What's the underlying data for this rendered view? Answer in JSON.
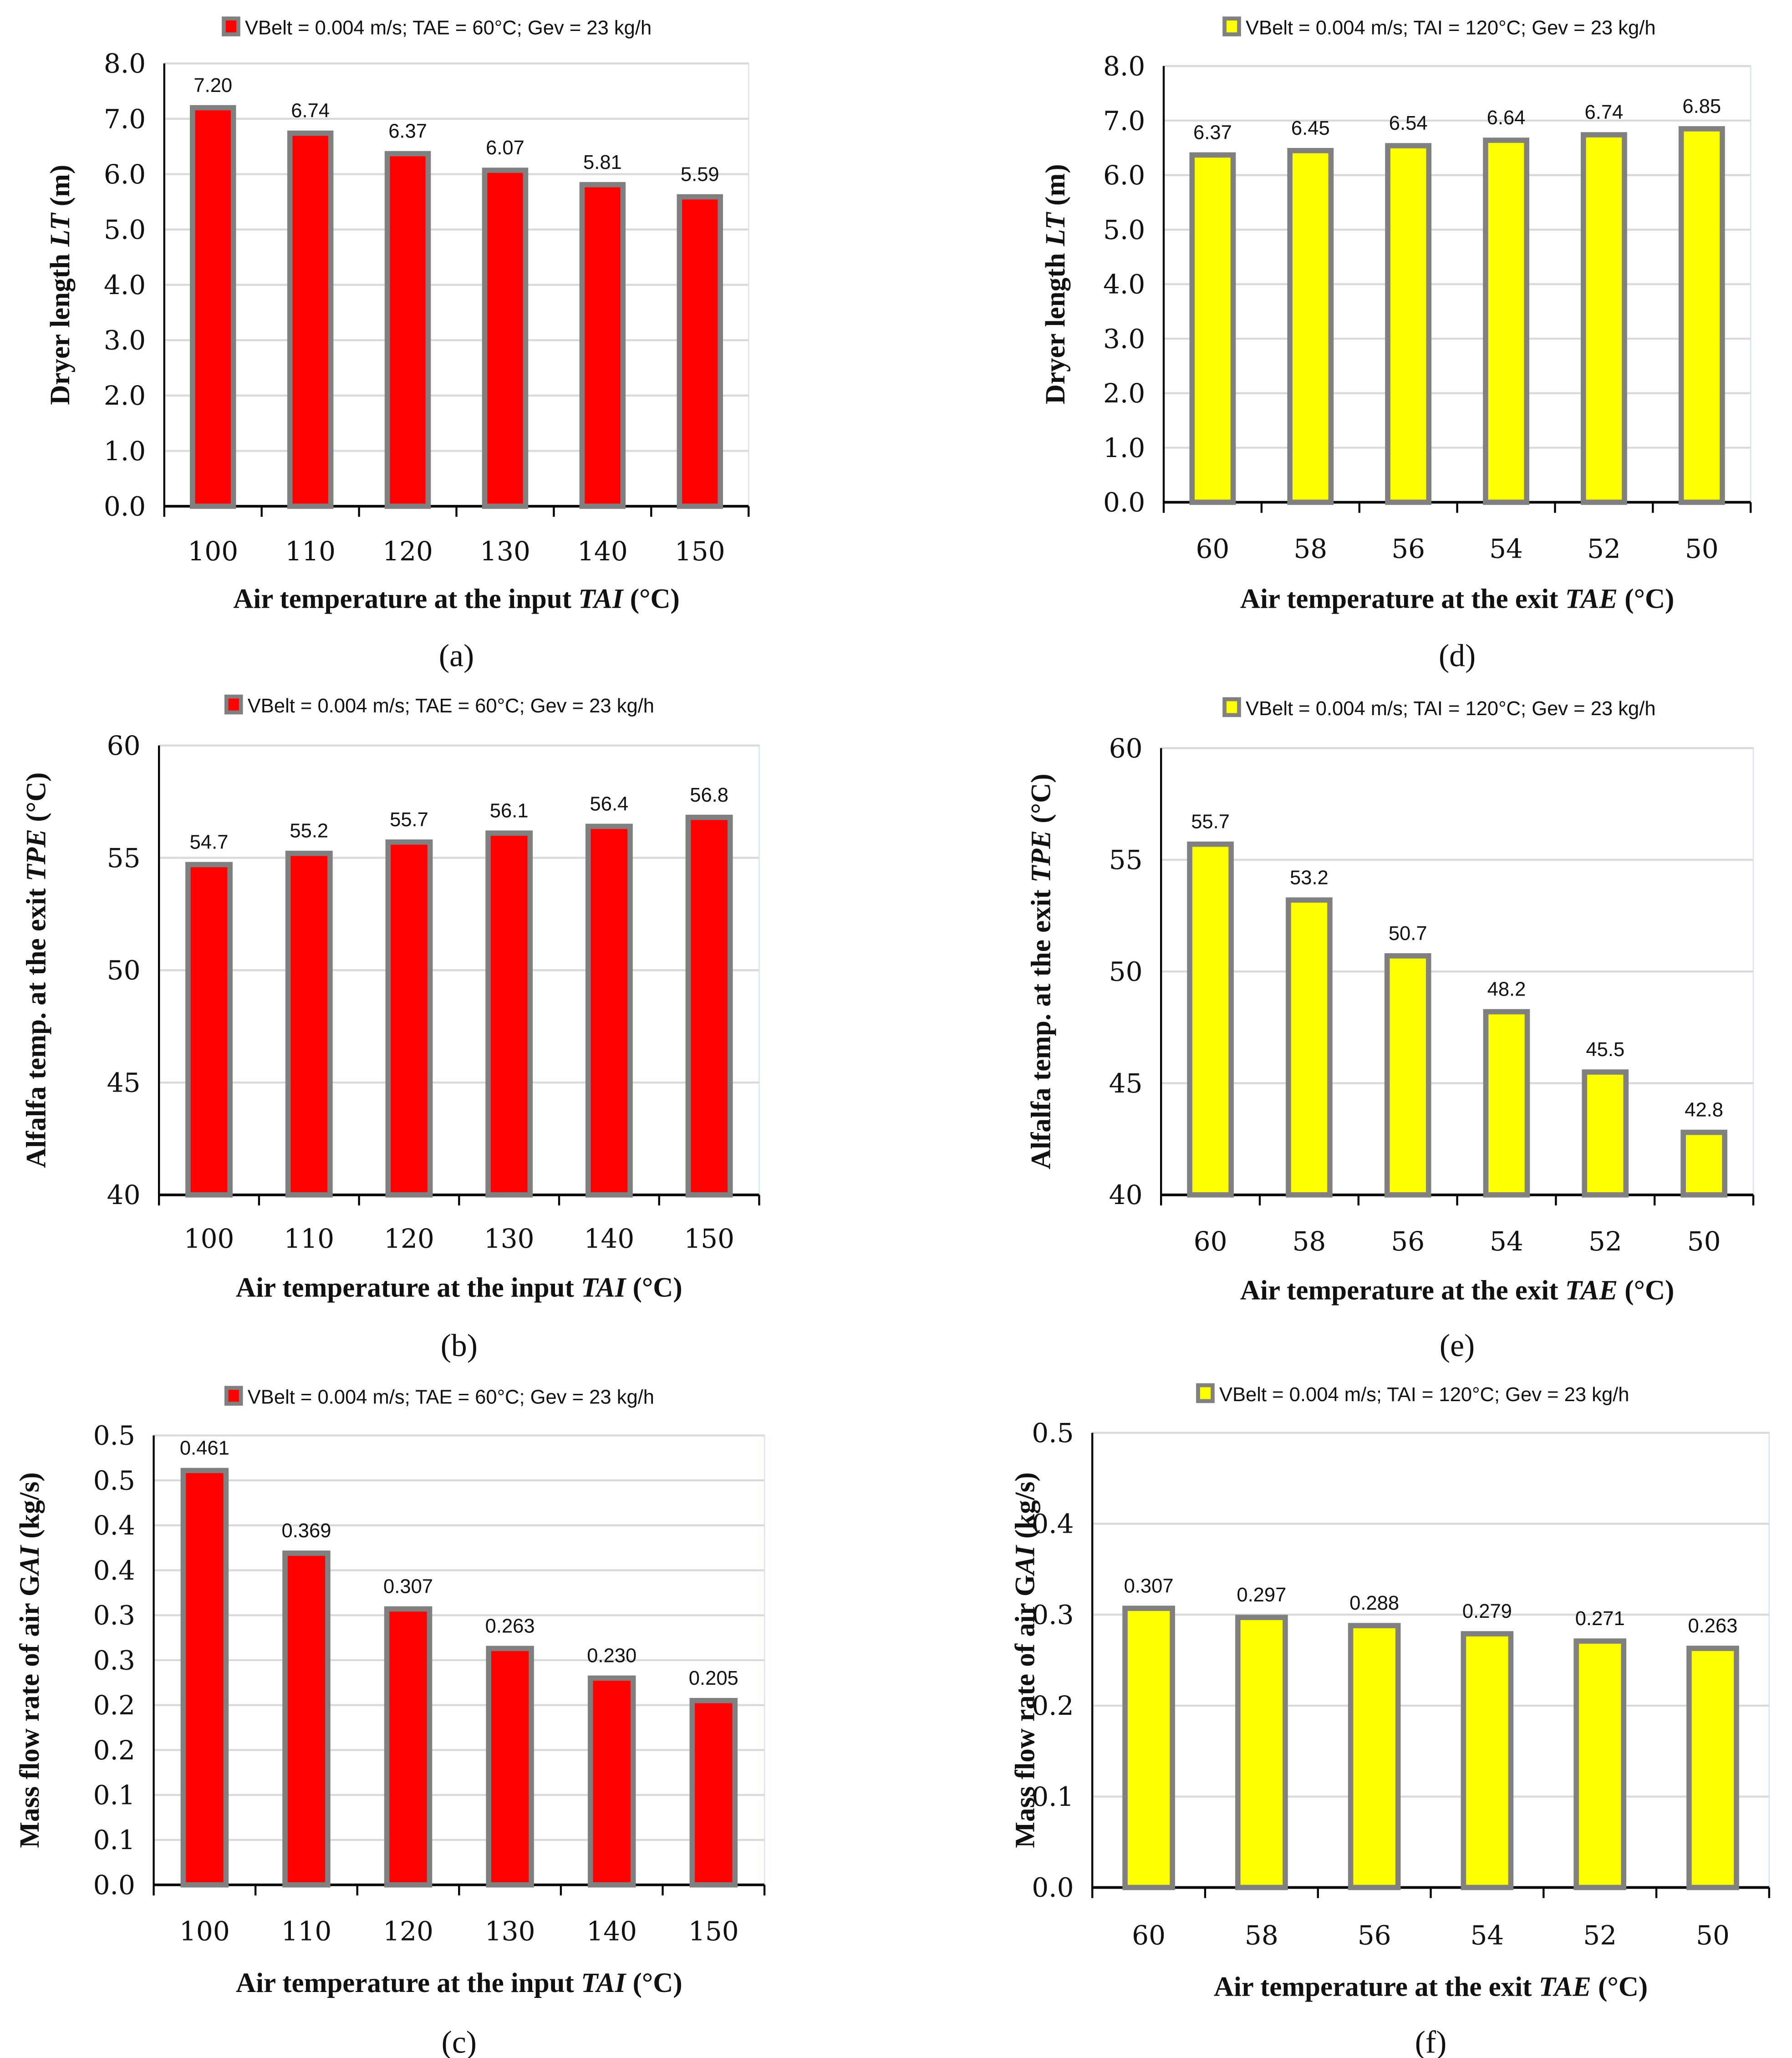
{
  "chart_data": [
    {
      "id": "a",
      "type": "bar",
      "panel_label": "(a)",
      "legend": "VBelt  = 0.004 m/s; TAE = 60°C; Gev = 23 kg/h",
      "legend_position": "top-center",
      "categories": [
        "100",
        "110",
        "120",
        "130",
        "140",
        "150"
      ],
      "values": [
        7.2,
        6.74,
        6.37,
        6.07,
        5.81,
        5.59
      ],
      "data_labels": [
        "7.20",
        "6.74",
        "6.37",
        "6.07",
        "5.81",
        "5.59"
      ],
      "ylim": [
        0,
        8
      ],
      "yticks": [
        0,
        1,
        2,
        3,
        4,
        5,
        6,
        7,
        8
      ],
      "ytick_labels": [
        "0.0",
        "1.0",
        "2.0",
        "3.0",
        "4.0",
        "5.0",
        "6.0",
        "7.0",
        "8.0"
      ],
      "ylabel": {
        "pre": "Dryer length  ",
        "ital": "LT",
        "post": " (m)"
      },
      "xlabel": {
        "pre": "Air  temperature at the input ",
        "ital": "TAI",
        "post": " (°C)"
      },
      "bar_color": "#ff0000",
      "grid": true
    },
    {
      "id": "d",
      "type": "bar",
      "panel_label": "(d)",
      "legend": "VBelt  = 0.004 m/s; TAI = 120°C; Gev = 23 kg/h",
      "legend_position": "top-center",
      "categories": [
        "60",
        "58",
        "56",
        "54",
        "52",
        "50"
      ],
      "values": [
        6.37,
        6.45,
        6.54,
        6.64,
        6.74,
        6.85
      ],
      "data_labels": [
        "6.37",
        "6.45",
        "6.54",
        "6.64",
        "6.74",
        "6.85"
      ],
      "ylim": [
        0,
        8
      ],
      "yticks": [
        0,
        1,
        2,
        3,
        4,
        5,
        6,
        7,
        8
      ],
      "ytick_labels": [
        "0.0",
        "1.0",
        "2.0",
        "3.0",
        "4.0",
        "5.0",
        "6.0",
        "7.0",
        "8.0"
      ],
      "ylabel": {
        "pre": "Dryer  length ",
        "ital": "LT",
        "post": " (m)"
      },
      "xlabel": {
        "pre": "Air temperature at the exit ",
        "ital": "TAE",
        "post": " (°C)"
      },
      "bar_color": "#ffff00",
      "grid": true
    },
    {
      "id": "b",
      "type": "bar",
      "panel_label": "(b)",
      "legend": "VBelt  = 0.004 m/s; TAE = 60°C; Gev = 23 kg/h",
      "legend_position": "top-center",
      "categories": [
        "100",
        "110",
        "120",
        "130",
        "140",
        "150"
      ],
      "values": [
        54.7,
        55.2,
        55.7,
        56.1,
        56.4,
        56.8
      ],
      "data_labels": [
        "54.7",
        "55.2",
        "55.7",
        "56.1",
        "56.4",
        "56.8"
      ],
      "ylim": [
        40,
        60
      ],
      "yticks": [
        40,
        45,
        50,
        55,
        60
      ],
      "ytick_labels": [
        "40",
        "45",
        "50",
        "55",
        "60"
      ],
      "ylabel": {
        "pre": "Alfalfa temp. at the exit ",
        "ital": "TPE",
        "post": " (°C)"
      },
      "xlabel": {
        "pre": "Air  temperature at the input ",
        "ital": "TAI",
        "post": " (°C)"
      },
      "bar_color": "#ff0000",
      "grid": true
    },
    {
      "id": "e",
      "type": "bar",
      "panel_label": "(e)",
      "legend": "VBelt  = 0.004 m/s; TAI = 120°C; Gev = 23 kg/h",
      "legend_position": "top-center",
      "categories": [
        "60",
        "58",
        "56",
        "54",
        "52",
        "50"
      ],
      "values": [
        55.7,
        53.2,
        50.7,
        48.2,
        45.5,
        42.8
      ],
      "data_labels": [
        "55.7",
        "53.2",
        "50.7",
        "48.2",
        "45.5",
        "42.8"
      ],
      "ylim": [
        40,
        60
      ],
      "yticks": [
        40,
        45,
        50,
        55,
        60
      ],
      "ytick_labels": [
        "40",
        "45",
        "50",
        "55",
        "60"
      ],
      "ylabel": {
        "pre": "Alfalfa temp. at the  exit ",
        "ital": "TPE",
        "post": " (°C)"
      },
      "xlabel": {
        "pre": "Air temperature at the exit ",
        "ital": "TAE",
        "post": " (°C)"
      },
      "bar_color": "#ffff00",
      "grid": true
    },
    {
      "id": "c",
      "type": "bar",
      "panel_label": "(c)",
      "legend": "VBelt  = 0.004 m/s; TAE = 60°C; Gev = 23 kg/h",
      "legend_position": "top-center",
      "categories": [
        "100",
        "110",
        "120",
        "130",
        "140",
        "150"
      ],
      "values": [
        0.461,
        0.369,
        0.307,
        0.263,
        0.23,
        0.205
      ],
      "data_labels": [
        "0.461",
        "0.369",
        "0.307",
        "0.263",
        "0.230",
        "0.205"
      ],
      "ylim": [
        0,
        0.5
      ],
      "yticks": [
        0,
        0.05,
        0.1,
        0.15,
        0.2,
        0.25,
        0.3,
        0.35,
        0.4,
        0.45,
        0.5
      ],
      "ytick_labels": [
        "0.0",
        "0.1",
        "0.1",
        "0.2",
        "0.2",
        "0.3",
        "0.3",
        "0.4",
        "0.4",
        "0.5",
        "0.5"
      ],
      "ylabel": {
        "pre": "Mass flow rate of air  G",
        "ital": "AI",
        "post": " (kg/s)"
      },
      "xlabel": {
        "pre": "Air temperature at the input ",
        "ital": "TAI",
        "post": " (°C)"
      },
      "bar_color": "#ff0000",
      "grid": true
    },
    {
      "id": "f",
      "type": "bar",
      "panel_label": "(f)",
      "legend": "VBelt  = 0.004 m/s; TAI = 120°C; Gev = 23 kg/h",
      "legend_position": "top-center",
      "categories": [
        "60",
        "58",
        "56",
        "54",
        "52",
        "50"
      ],
      "values": [
        0.307,
        0.297,
        0.288,
        0.279,
        0.271,
        0.263
      ],
      "data_labels": [
        "0.307",
        "0.297",
        "0.288",
        "0.279",
        "0.271",
        "0.263"
      ],
      "ylim": [
        0,
        0.5
      ],
      "yticks": [
        0,
        0.1,
        0.2,
        0.3,
        0.4,
        0.5
      ],
      "ytick_labels": [
        "0.0",
        "0.1",
        "0.2",
        "0.3",
        "0.4",
        "0.5"
      ],
      "ylabel": {
        "pre": "Mass flow rate of air G",
        "ital": "AI",
        "post": " (kg/s)"
      },
      "xlabel": {
        "pre": "Air temperature at the exit ",
        "ital": "TAE",
        "post": " (°C)"
      },
      "bar_color": "#ffff00",
      "grid": true
    }
  ]
}
